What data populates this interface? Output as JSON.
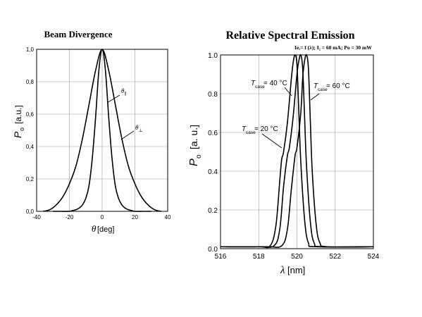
{
  "chart_data": [
    {
      "type": "line",
      "title": "Beam Divergence",
      "xlabel_symbol": "θ",
      "xlabel_unit": "[deg]",
      "ylabel_symbol": "P",
      "ylabel_sub": "o",
      "ylabel_unit": "[a.u.]",
      "xlim": [
        -40,
        40
      ],
      "ylim": [
        0,
        1
      ],
      "grid": true,
      "x_ticks": [
        "-40",
        "-20",
        "0",
        "20",
        "40"
      ],
      "y_ticks": [
        "0,0",
        "0,2",
        "0,4",
        "0,6",
        "0,8",
        "1,0"
      ],
      "series": [
        {
          "name": "θ∥",
          "label_main": "θ",
          "label_sub": "∥",
          "x": [
            -30,
            -25,
            -20,
            -18,
            -16,
            -14,
            -12,
            -10,
            -8,
            -6,
            -4,
            -2,
            0,
            2,
            4,
            6,
            8,
            10,
            12,
            14,
            16,
            18,
            20,
            25,
            30
          ],
          "y": [
            0.0,
            0.0,
            0.0,
            0.005,
            0.01,
            0.02,
            0.04,
            0.08,
            0.16,
            0.33,
            0.58,
            0.87,
            1.0,
            0.87,
            0.58,
            0.33,
            0.16,
            0.08,
            0.04,
            0.02,
            0.01,
            0.005,
            0.0,
            0.0,
            0.0
          ]
        },
        {
          "name": "θ⊥",
          "label_main": "θ",
          "label_sub": "⊥",
          "x": [
            -36,
            -32,
            -28,
            -24,
            -20,
            -16,
            -12,
            -8,
            -4,
            0,
            4,
            8,
            12,
            16,
            20,
            24,
            28,
            32,
            36
          ],
          "y": [
            0.0,
            0.01,
            0.04,
            0.09,
            0.17,
            0.28,
            0.45,
            0.66,
            0.87,
            1.0,
            0.87,
            0.66,
            0.45,
            0.28,
            0.17,
            0.09,
            0.04,
            0.01,
            0.0
          ]
        }
      ]
    },
    {
      "type": "line",
      "title": "Relative Spectral Emission",
      "subtitle": "Ie,= f (λ); I₂ = 60 mA; Po = 30 mW",
      "xlabel_symbol": "λ",
      "xlabel_unit": "[nm]",
      "ylabel_symbol": "P",
      "ylabel_sub": "o",
      "ylabel_unit": "[a. u.]",
      "xlim": [
        516,
        524
      ],
      "ylim": [
        0,
        1
      ],
      "grid": true,
      "x_ticks": [
        "516",
        "518",
        "520",
        "522",
        "524"
      ],
      "y_ticks": [
        "0.0",
        "0.2",
        "0.4",
        "0.6",
        "0.8",
        "1.0"
      ],
      "series": [
        {
          "name": "Tcase = 20 °C",
          "label_main": "T",
          "label_sub": "case",
          "label_rest": " = 20 °C",
          "x": [
            516,
            518,
            518.6,
            518.9,
            519.1,
            519.2,
            519.3,
            519.5,
            519.7,
            519.8,
            519.9,
            520.0,
            520.1,
            520.2,
            520.4,
            520.6,
            521.0,
            524
          ],
          "y": [
            0.01,
            0.01,
            0.015,
            0.12,
            0.35,
            0.46,
            0.5,
            0.65,
            0.87,
            0.96,
            1.0,
            0.95,
            0.7,
            0.45,
            0.15,
            0.03,
            0.01,
            0.01
          ]
        },
        {
          "name": "Tcase = 40 °C",
          "label_main": "T",
          "label_sub": "case",
          "label_rest": " = 40 °C",
          "x": [
            516,
            518,
            518.8,
            519.1,
            519.3,
            519.5,
            519.6,
            519.8,
            520.0,
            520.1,
            520.2,
            520.3,
            520.4,
            520.5,
            520.7,
            520.9,
            521.3,
            524
          ],
          "y": [
            0.01,
            0.01,
            0.015,
            0.1,
            0.32,
            0.48,
            0.52,
            0.68,
            0.9,
            0.97,
            1.0,
            0.93,
            0.68,
            0.43,
            0.14,
            0.03,
            0.01,
            0.01
          ]
        },
        {
          "name": "Tcase = 60 °C",
          "label_main": "T",
          "label_sub": "case",
          "label_rest": " = 60 °C",
          "x": [
            516,
            518.4,
            519.2,
            519.5,
            519.7,
            519.9,
            520.0,
            520.2,
            520.3,
            520.4,
            520.5,
            520.6,
            520.7,
            520.8,
            521.0,
            521.2,
            521.6,
            524
          ],
          "y": [
            0.01,
            0.01,
            0.015,
            0.1,
            0.3,
            0.48,
            0.52,
            0.7,
            0.88,
            0.97,
            1.0,
            0.93,
            0.66,
            0.4,
            0.13,
            0.03,
            0.01,
            0.01
          ]
        }
      ]
    }
  ]
}
